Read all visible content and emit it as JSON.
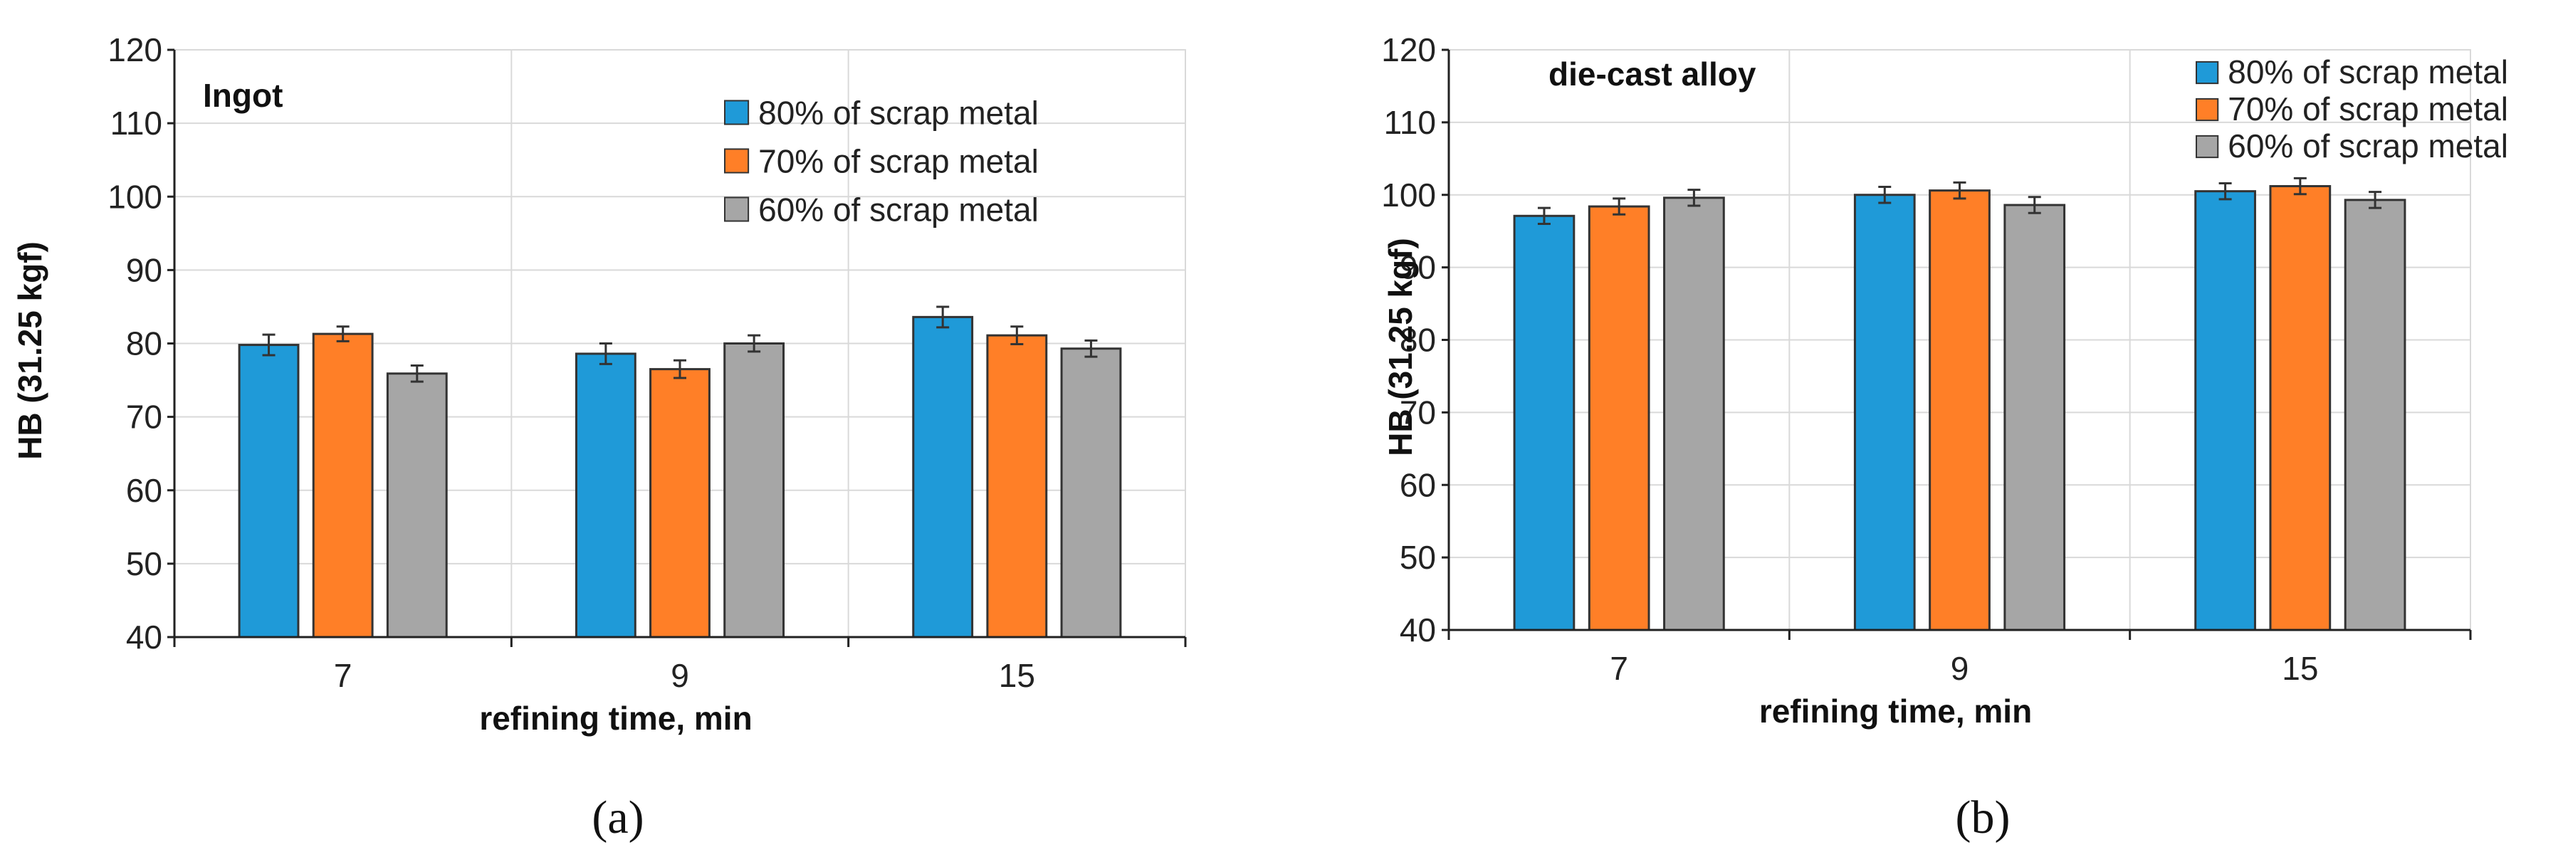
{
  "chart_data": [
    {
      "type": "bar",
      "panel_label": "(a)",
      "title": "Ingot",
      "xlabel": "refining time, min",
      "ylabel": "HB (31.25 kgf)",
      "categories": [
        "7",
        "9",
        "15"
      ],
      "ylim": [
        40,
        120
      ],
      "yticks": [
        40,
        50,
        60,
        70,
        80,
        90,
        100,
        110,
        120
      ],
      "grid": true,
      "legend_position": "top-right",
      "series": [
        {
          "name": "80% of scrap metal",
          "color": "#1f9ad8",
          "values": [
            79.8,
            78.6,
            83.6
          ],
          "errors": [
            1.4,
            1.4,
            1.4
          ]
        },
        {
          "name": "70% of scrap metal",
          "color": "#ff7f27",
          "values": [
            81.3,
            76.5,
            81.1
          ],
          "errors": [
            1.0,
            1.2,
            1.2
          ]
        },
        {
          "name": "60% of scrap metal",
          "color": "#a6a6a6",
          "values": [
            75.9,
            80.0,
            79.3
          ],
          "errors": [
            1.1,
            1.1,
            1.1
          ]
        }
      ]
    },
    {
      "type": "bar",
      "panel_label": "(b)",
      "title": "die-cast alloy",
      "xlabel": "refining time, min",
      "ylabel": "HB (31.25 kgf)",
      "categories": [
        "7",
        "9",
        "15"
      ],
      "ylim": [
        40,
        120
      ],
      "yticks": [
        40,
        50,
        60,
        70,
        80,
        90,
        100,
        110,
        120
      ],
      "grid": true,
      "legend_position": "top-right",
      "series": [
        {
          "name": "80% of scrap metal",
          "color": "#1f9ad8",
          "values": [
            97.1,
            100.0,
            100.5
          ],
          "errors": [
            1.1,
            1.1,
            1.1
          ]
        },
        {
          "name": "70% of scrap metal",
          "color": "#ff7f27",
          "values": [
            98.4,
            100.6,
            101.2
          ],
          "errors": [
            1.1,
            1.1,
            1.1
          ]
        },
        {
          "name": "60% of scrap metal",
          "color": "#a6a6a6",
          "values": [
            99.6,
            98.6,
            99.3
          ],
          "errors": [
            1.1,
            1.1,
            1.1
          ]
        }
      ]
    }
  ]
}
